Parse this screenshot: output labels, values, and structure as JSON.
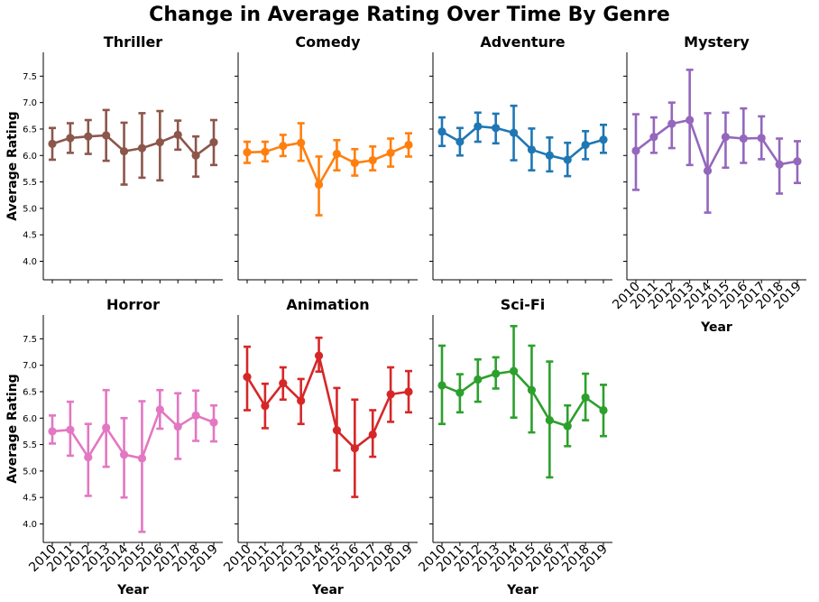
{
  "figure": {
    "title": "Change in Average Rating Over Time By Genre"
  },
  "chart_data": {
    "type": "line",
    "title": "Change in Average Rating Over Time By Genre",
    "xlabel": "Year",
    "ylabel": "Average Rating",
    "ylim": [
      3.65,
      7.95
    ],
    "yticks": [
      "4.0",
      "4.5",
      "5.0",
      "5.5",
      "6.0",
      "6.5",
      "7.0",
      "7.5"
    ],
    "categories": [
      "2010",
      "2011",
      "2012",
      "2013",
      "2014",
      "2015",
      "2016",
      "2017",
      "2018",
      "2019"
    ],
    "error_bars": true,
    "grid": false,
    "layout": "facet grid 2x4, shared axes",
    "series": [
      {
        "name": "Thriller",
        "color": "#8c564b",
        "values": [
          6.22,
          6.33,
          6.36,
          6.38,
          6.08,
          6.14,
          6.25,
          6.39,
          6.0,
          6.25
        ],
        "lower": [
          5.92,
          6.05,
          6.03,
          5.9,
          5.45,
          5.58,
          5.53,
          6.11,
          5.6,
          5.82
        ],
        "upper": [
          6.52,
          6.61,
          6.67,
          6.86,
          6.62,
          6.8,
          6.84,
          6.66,
          6.36,
          6.67
        ]
      },
      {
        "name": "Comedy",
        "color": "#ff7f0e",
        "values": [
          6.06,
          6.07,
          6.18,
          6.24,
          5.45,
          6.03,
          5.86,
          5.91,
          6.05,
          6.2
        ],
        "lower": [
          5.86,
          5.89,
          5.99,
          5.9,
          4.87,
          5.72,
          5.62,
          5.72,
          5.79,
          5.98
        ],
        "upper": [
          6.26,
          6.26,
          6.39,
          6.61,
          5.98,
          6.29,
          6.12,
          6.17,
          6.32,
          6.42
        ]
      },
      {
        "name": "Adventure",
        "color": "#1f77b4",
        "values": [
          6.45,
          6.26,
          6.55,
          6.52,
          6.43,
          6.11,
          6.0,
          5.92,
          6.2,
          6.3
        ],
        "lower": [
          6.18,
          6.0,
          6.26,
          6.23,
          5.91,
          5.72,
          5.7,
          5.61,
          5.93,
          6.05
        ],
        "upper": [
          6.72,
          6.52,
          6.81,
          6.79,
          6.94,
          6.51,
          6.34,
          6.24,
          6.46,
          6.58
        ]
      },
      {
        "name": "Mystery",
        "color": "#9467bd",
        "values": [
          6.09,
          6.35,
          6.6,
          6.67,
          5.71,
          6.35,
          6.32,
          6.33,
          5.83,
          5.89
        ],
        "lower": [
          5.35,
          6.05,
          6.14,
          5.82,
          4.92,
          5.77,
          5.86,
          5.93,
          5.28,
          5.48
        ],
        "upper": [
          6.78,
          6.72,
          7.0,
          7.62,
          6.8,
          6.81,
          6.89,
          6.74,
          6.32,
          6.27
        ]
      },
      {
        "name": "Horror",
        "color": "#e377c2",
        "values": [
          5.75,
          5.78,
          5.26,
          5.82,
          5.31,
          5.24,
          6.16,
          5.84,
          6.05,
          5.92
        ],
        "lower": [
          5.52,
          5.29,
          4.53,
          5.08,
          4.5,
          3.85,
          5.8,
          5.23,
          5.57,
          5.56
        ],
        "upper": [
          6.05,
          6.31,
          5.89,
          6.53,
          6.0,
          6.32,
          6.53,
          6.47,
          6.52,
          6.24
        ]
      },
      {
        "name": "Animation",
        "color": "#d62728",
        "values": [
          6.78,
          6.23,
          6.66,
          6.33,
          7.18,
          5.77,
          5.43,
          5.69,
          6.45,
          6.5
        ],
        "lower": [
          6.15,
          5.81,
          6.35,
          5.89,
          6.88,
          5.01,
          4.51,
          5.27,
          5.93,
          6.11
        ],
        "upper": [
          7.35,
          6.65,
          6.96,
          6.74,
          7.52,
          6.57,
          6.35,
          6.15,
          6.96,
          6.89
        ]
      },
      {
        "name": "Sci-Fi",
        "color": "#2ca02c",
        "values": [
          6.62,
          6.48,
          6.73,
          6.84,
          6.89,
          6.53,
          5.96,
          5.85,
          6.39,
          6.15
        ],
        "lower": [
          5.89,
          6.11,
          6.31,
          6.56,
          6.01,
          5.73,
          4.88,
          5.47,
          5.96,
          5.66
        ],
        "upper": [
          7.37,
          6.83,
          7.11,
          7.15,
          7.74,
          7.37,
          7.07,
          6.24,
          6.84,
          6.63
        ]
      }
    ]
  }
}
